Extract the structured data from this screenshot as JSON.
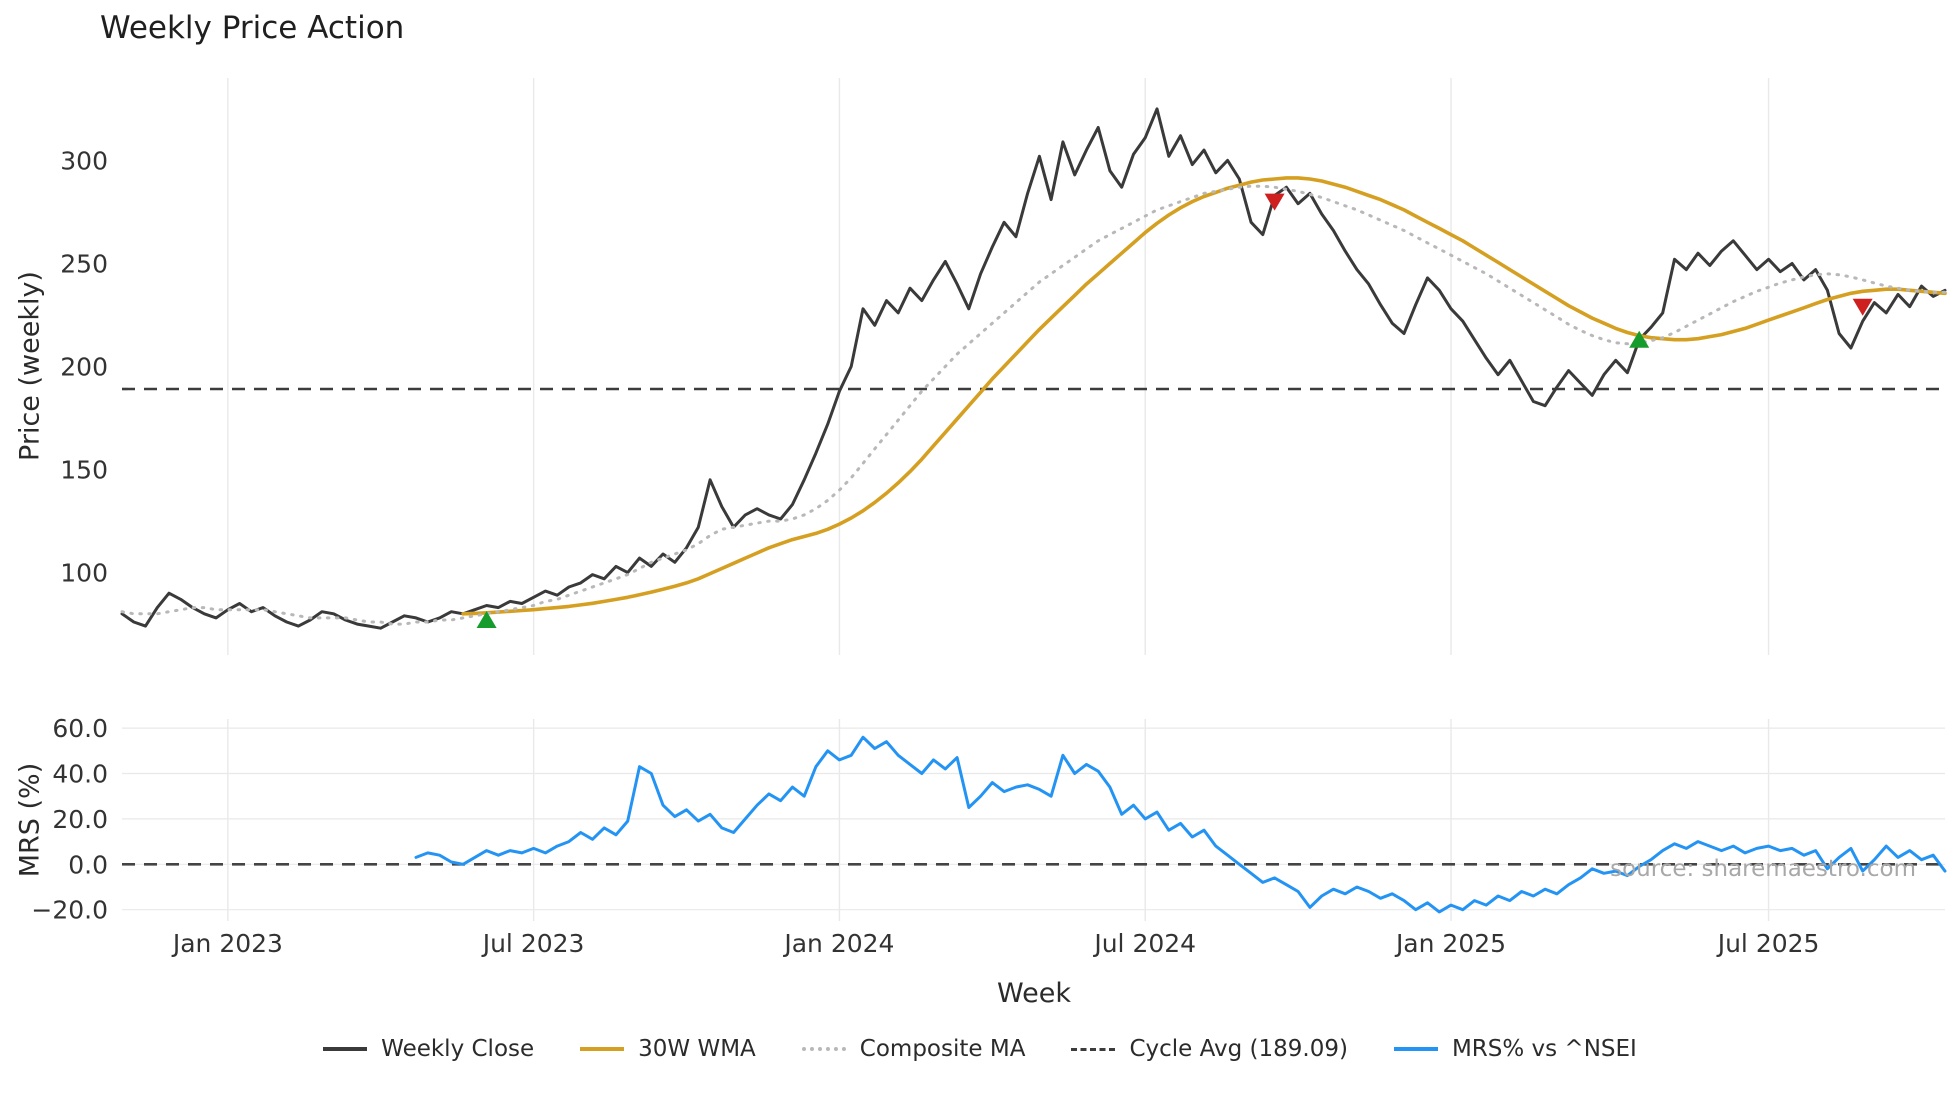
{
  "figure": {
    "title": "Weekly Price Action",
    "xlabel": "Week",
    "source": "source: sharemaestro.com"
  },
  "colors": {
    "close": "#3a3a3a",
    "wma": "#d5a021",
    "composite": "#b8b8b8",
    "cycle_avg": "#3c3c3c",
    "mrs": "#2494f4",
    "buy": "#169c2d",
    "sell": "#cf2020",
    "grid": "#e9e9e9",
    "tick_text": "#333333"
  },
  "chart_data": [
    {
      "type": "line",
      "title": "Weekly Price Action",
      "ylabel": "Price (weekly)",
      "ylim": [
        60,
        340
      ],
      "grid_horizontal": false,
      "x_total_weeks": 156,
      "x_ticks": [
        {
          "label": "Jan 2023",
          "week": 9
        },
        {
          "label": "Jul 2023",
          "week": 35
        },
        {
          "label": "Jan 2024",
          "week": 61
        },
        {
          "label": "Jul 2024",
          "week": 87
        },
        {
          "label": "Jan 2025",
          "week": 113
        },
        {
          "label": "Jul 2025",
          "week": 140
        }
      ],
      "y_ticks": [
        {
          "value": 100,
          "label": "100"
        },
        {
          "value": 150,
          "label": "150"
        },
        {
          "value": 200,
          "label": "200"
        },
        {
          "value": 250,
          "label": "250"
        },
        {
          "value": 300,
          "label": "300"
        }
      ],
      "hlines": [
        {
          "name": "cycle-avg-line",
          "label": "Cycle Avg (189.09)",
          "value": 189.09,
          "style": "dashed",
          "color": "#3c3c3c"
        }
      ],
      "series": [
        {
          "name": "Weekly Close",
          "data_name": "weekly-close-line",
          "color": "#3a3a3a",
          "style": "solid",
          "width": 3,
          "start_week": 0,
          "values": [
            80,
            76,
            74,
            83,
            90,
            87,
            83,
            80,
            78,
            82,
            85,
            81,
            83,
            79,
            76,
            74,
            77,
            81,
            80,
            77,
            75,
            74,
            73,
            76,
            79,
            78,
            76,
            78,
            81,
            80,
            82,
            84,
            83,
            86,
            85,
            88,
            91,
            89,
            93,
            95,
            99,
            97,
            103,
            100,
            107,
            103,
            109,
            105,
            112,
            122,
            145,
            132,
            122,
            128,
            131,
            128,
            126,
            133,
            145,
            158,
            172,
            188,
            200,
            228,
            220,
            232,
            226,
            238,
            232,
            242,
            251,
            240,
            228,
            245,
            258,
            270,
            263,
            284,
            302,
            281,
            309,
            293,
            305,
            316,
            295,
            287,
            303,
            311,
            325,
            302,
            312,
            298,
            305,
            294,
            300,
            291,
            270,
            264,
            283,
            287,
            279,
            284,
            274,
            266,
            256,
            247,
            240,
            230,
            221,
            216,
            230,
            243,
            237,
            228,
            222,
            213,
            204,
            196,
            203,
            193,
            183,
            181,
            190,
            198,
            192,
            186,
            196,
            203,
            197,
            213,
            219,
            226,
            252,
            247,
            255,
            249,
            256,
            261,
            254,
            247,
            252,
            246,
            250,
            242,
            247,
            237,
            216,
            209,
            222,
            231,
            226,
            235,
            229,
            239,
            234,
            237
          ]
        },
        {
          "name": "30W WMA",
          "data_name": "wma-line",
          "color": "#d5a021",
          "style": "solid",
          "width": 3.6,
          "start_week": 29,
          "values": [
            80.0,
            80.2,
            80.5,
            80.8,
            81.2,
            81.6,
            82.0,
            82.5,
            83.0,
            83.6,
            84.3,
            85.1,
            86.0,
            87.0,
            88.0,
            89.2,
            90.5,
            91.9,
            93.4,
            95.0,
            97.0,
            99.5,
            102.0,
            104.5,
            107.0,
            109.5,
            112.0,
            114.0,
            116.0,
            117.5,
            119.0,
            121.0,
            123.5,
            126.5,
            130.0,
            134.0,
            138.5,
            143.5,
            149.0,
            155.0,
            161.5,
            168.0,
            174.5,
            181.0,
            187.5,
            194.0,
            200.0,
            206.0,
            212.0,
            218.0,
            223.5,
            229.0,
            234.5,
            240.0,
            245.0,
            250.0,
            255.0,
            260.0,
            265.0,
            269.5,
            273.5,
            277.0,
            280.0,
            282.5,
            284.5,
            286.5,
            288.0,
            289.5,
            290.5,
            291.0,
            291.5,
            291.5,
            291.0,
            290.0,
            288.5,
            287.0,
            285.0,
            283.0,
            281.0,
            278.5,
            276.0,
            273.0,
            270.0,
            267.0,
            264.0,
            261.0,
            257.5,
            254.0,
            250.5,
            247.0,
            243.5,
            240.0,
            236.5,
            233.0,
            229.5,
            226.5,
            223.5,
            221.0,
            218.5,
            216.5,
            215.0,
            214.0,
            213.5,
            213.0,
            213.0,
            213.5,
            214.5,
            215.5,
            217.0,
            218.5,
            220.5,
            222.5,
            224.5,
            226.5,
            228.5,
            230.5,
            232.5,
            234.0,
            235.5,
            236.5,
            237.0,
            237.5,
            237.5,
            237.0,
            236.5,
            236.0,
            235.5
          ]
        },
        {
          "name": "Composite MA",
          "data_name": "composite-ma-line",
          "color": "#b8b8b8",
          "style": "dotted",
          "width": 3,
          "start_week": 0,
          "values": [
            81,
            80,
            80,
            80,
            81,
            82,
            83,
            83,
            82,
            82,
            82,
            82,
            82,
            81,
            80,
            79,
            78,
            78,
            78,
            78,
            77,
            76,
            76,
            75,
            75,
            76,
            76,
            77,
            77,
            78,
            79,
            80,
            81,
            82,
            83,
            84,
            86,
            87,
            89,
            91,
            93,
            95,
            97,
            99,
            102,
            105,
            107,
            109,
            111,
            114,
            118,
            121,
            122,
            123,
            124,
            125,
            125,
            126,
            128,
            131,
            135,
            140,
            146,
            153,
            160,
            167,
            174,
            181,
            188,
            194,
            200,
            206,
            211,
            216,
            221,
            226,
            231,
            236,
            241,
            245,
            249,
            253,
            257,
            261,
            264,
            267,
            270,
            273,
            276,
            278,
            280,
            282,
            284,
            285,
            286,
            287,
            287.5,
            287.5,
            287,
            286,
            285,
            283.5,
            282,
            280,
            278,
            276,
            273.5,
            271,
            268.5,
            266,
            263,
            260,
            257,
            254,
            251,
            248,
            245,
            241.5,
            238,
            234.5,
            231,
            227.5,
            224,
            220.5,
            217.5,
            215,
            213,
            211.5,
            211,
            211.5,
            212.5,
            214,
            216.5,
            219.5,
            222.5,
            225.5,
            228.5,
            231.5,
            234,
            236.5,
            238.5,
            240.5,
            242,
            243.5,
            244.5,
            245,
            244.5,
            243.5,
            242,
            240.5,
            239,
            238,
            237,
            236.5,
            236,
            236
          ]
        }
      ],
      "signals": {
        "buy": {
          "color": "#169c2d",
          "points": [
            {
              "week": 31,
              "value": 77
            },
            {
              "week": 129,
              "value": 213
            }
          ]
        },
        "sell": {
          "color": "#cf2020",
          "points": [
            {
              "week": 98,
              "value": 280
            },
            {
              "week": 148,
              "value": 229
            }
          ]
        }
      }
    },
    {
      "type": "line",
      "ylabel": "MRS (%)",
      "ylim": [
        -25,
        64
      ],
      "grid_horizontal": true,
      "y_ticks": [
        {
          "value": -20,
          "label": "−20.0"
        },
        {
          "value": 0,
          "label": "0.0"
        },
        {
          "value": 20,
          "label": "20.0"
        },
        {
          "value": 40,
          "label": "40.0"
        },
        {
          "value": 60,
          "label": "60.0"
        }
      ],
      "hlines": [
        {
          "name": "mrs-zero-line",
          "value": 0,
          "style": "dashed",
          "color": "#444444"
        }
      ],
      "series": [
        {
          "name": "MRS% vs ^NSEI",
          "data_name": "mrs-line",
          "color": "#2494f4",
          "style": "solid",
          "width": 3,
          "start_week": 25,
          "values": [
            3,
            5,
            4,
            1,
            0,
            3,
            6,
            4,
            6,
            5,
            7,
            5,
            8,
            10,
            14,
            11,
            16,
            13,
            19,
            43,
            40,
            26,
            21,
            24,
            19,
            22,
            16,
            14,
            20,
            26,
            31,
            28,
            34,
            30,
            43,
            50,
            46,
            48,
            56,
            51,
            54,
            48,
            44,
            40,
            46,
            42,
            47,
            25,
            30,
            36,
            32,
            34,
            35,
            33,
            30,
            48,
            40,
            44,
            41,
            34,
            22,
            26,
            20,
            23,
            15,
            18,
            12,
            15,
            8,
            4,
            0,
            -4,
            -8,
            -6,
            -9,
            -12,
            -19,
            -14,
            -11,
            -13,
            -10,
            -12,
            -15,
            -13,
            -16,
            -20,
            -17,
            -21,
            -18,
            -20,
            -16,
            -18,
            -14,
            -16,
            -12,
            -14,
            -11,
            -13,
            -9,
            -6,
            -2,
            -4,
            -3,
            -5,
            -1,
            2,
            6,
            9,
            7,
            10,
            8,
            6,
            8,
            5,
            7,
            8,
            6,
            7,
            4,
            6,
            -2,
            3,
            7,
            -3,
            2,
            8,
            3,
            6,
            2,
            4,
            -3
          ]
        }
      ]
    }
  ],
  "legend": [
    {
      "label": "Weekly Close",
      "swatch": "solid",
      "color": "#3a3a3a"
    },
    {
      "label": "30W WMA",
      "swatch": "solid",
      "color": "#d5a021"
    },
    {
      "label": "Composite MA",
      "swatch": "dotted",
      "color": "#b8b8b8"
    },
    {
      "label": "Cycle Avg (189.09)",
      "swatch": "dashed",
      "color": "#3c3c3c"
    },
    {
      "label": "MRS% vs ^NSEI",
      "swatch": "solid",
      "color": "#2494f4"
    }
  ]
}
